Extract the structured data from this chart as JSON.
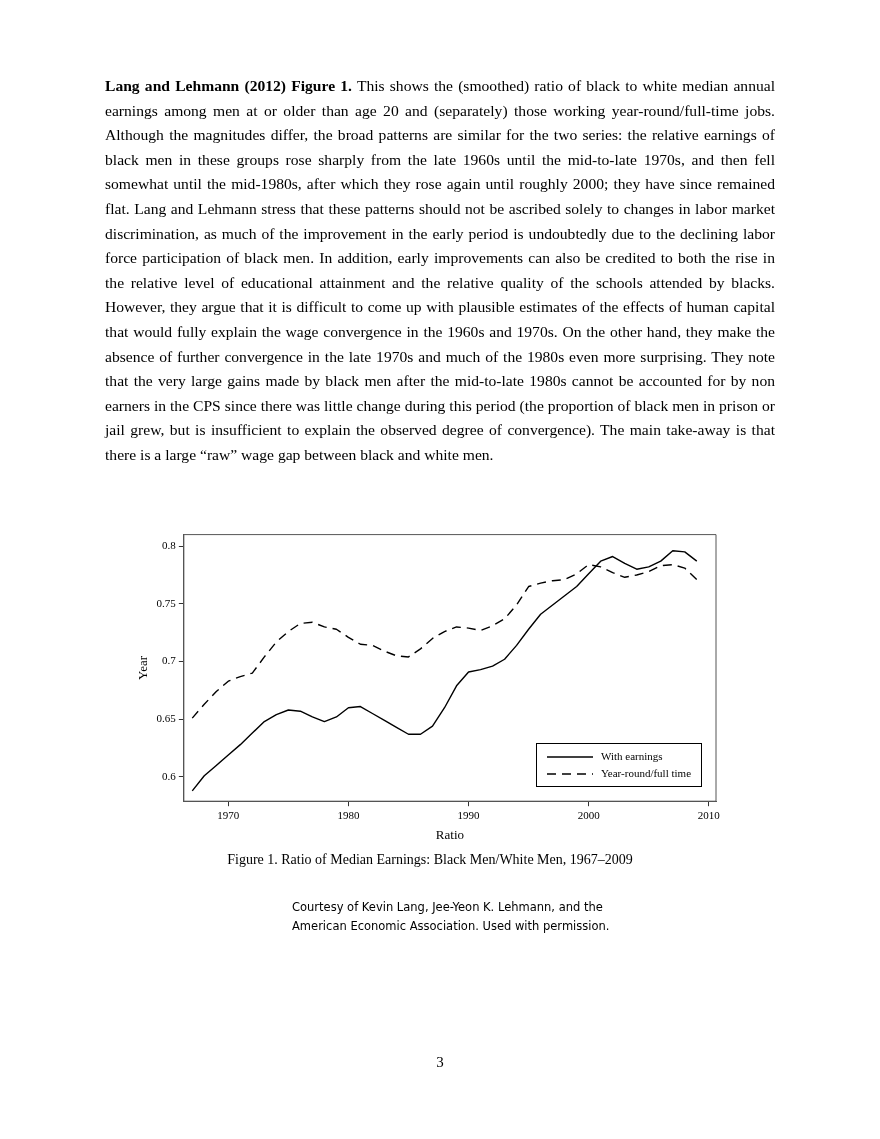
{
  "chart_data": {
    "type": "line",
    "title": "Figure 1. Ratio of Median Earnings: Black Men/White Men, 1967–2009",
    "xlabel": "Ratio",
    "ylabel": "Year",
    "x": [
      1967,
      1968,
      1969,
      1970,
      1971,
      1972,
      1973,
      1974,
      1975,
      1976,
      1977,
      1978,
      1979,
      1980,
      1981,
      1982,
      1983,
      1984,
      1985,
      1986,
      1987,
      1988,
      1989,
      1990,
      1991,
      1992,
      1993,
      1994,
      1995,
      1996,
      1997,
      1998,
      1999,
      2000,
      2001,
      2002,
      2003,
      2004,
      2005,
      2006,
      2007,
      2008,
      2009
    ],
    "series": [
      {
        "name": "With earnings",
        "color": "#000000",
        "line_style": "solid",
        "values": [
          0.588,
          0.601,
          0.61,
          0.619,
          0.628,
          0.638,
          0.648,
          0.654,
          0.658,
          0.657,
          0.652,
          0.648,
          0.652,
          0.66,
          0.661,
          0.655,
          0.649,
          0.643,
          0.637,
          0.637,
          0.644,
          0.66,
          0.679,
          0.691,
          0.693,
          0.696,
          0.702,
          0.714,
          0.728,
          0.741,
          0.749,
          0.757,
          0.765,
          0.776,
          0.787,
          0.791,
          0.785,
          0.78,
          0.782,
          0.787,
          0.796,
          0.795,
          0.787
        ]
      },
      {
        "name": "Year-round/full time",
        "color": "#000000",
        "line_style": "dashed",
        "values": [
          0.651,
          0.663,
          0.674,
          0.683,
          0.687,
          0.69,
          0.704,
          0.717,
          0.726,
          0.733,
          0.734,
          0.73,
          0.728,
          0.721,
          0.715,
          0.714,
          0.709,
          0.705,
          0.704,
          0.711,
          0.72,
          0.726,
          0.73,
          0.729,
          0.727,
          0.731,
          0.737,
          0.749,
          0.765,
          0.768,
          0.77,
          0.771,
          0.776,
          0.784,
          0.782,
          0.777,
          0.773,
          0.775,
          0.778,
          0.783,
          0.784,
          0.781,
          0.771
        ]
      }
    ],
    "xlim": [
      1966.3,
      2010.6
    ],
    "xticks": [
      1970,
      1980,
      1990,
      2000,
      2010
    ],
    "ylim": [
      0.579,
      0.81
    ],
    "yticks": [
      0.6,
      0.65,
      0.7,
      0.75,
      0.8
    ],
    "grid": false,
    "legend": "bottom right",
    "marker": "none",
    "annotations": [
      "Lang and Lehmann (2012) Figure 1.",
      "This shows the (smoothed) ratio of black to white median annual earnings among men at or older than age 20 and (separately) those working year-round/full-time jobs. Although the magnitudes differ, the broad patterns are similar for the two series: the relative earnings of black men in these groups rose sharply from the late 1960s until the mid-to-late 1970s, and then fell somewhat until the mid-1980s, after which they rose again until roughly 2000; they have since remained flat. Lang and Lehmann stress that these patterns should not be ascribed solely to changes in labor market discrimination, as much of the improvement in the early period is undoubtedly due to the declining labor force participation of black men. In addition, early improvements can also be credited to both the rise in the relative level of educational attainment and the relative quality of the schools attended by blacks. However, they argue that it is difficult to come up with plausible estimates of the effects of human capital that would fully explain the wage convergence in the 1960s and 1970s. On the other hand, they make the absence of further convergence in the late 1970s and much of the 1980s even more surprising. They note that the very large gains made by black men after the mid-to-late 1980s cannot be accounted for by non earners in the CPS since there was little change during this period (the proportion of black men in prison or jail grew, but is insufficient to explain the observed degree of convergence). The main take-away is that there is a large “raw” wage gap between black and white men.",
      "Courtesy of Kevin Lang, Jee-Yeon K. Lehmann, and the American Economic Association. Used with permission.",
      "3"
    ]
  }
}
